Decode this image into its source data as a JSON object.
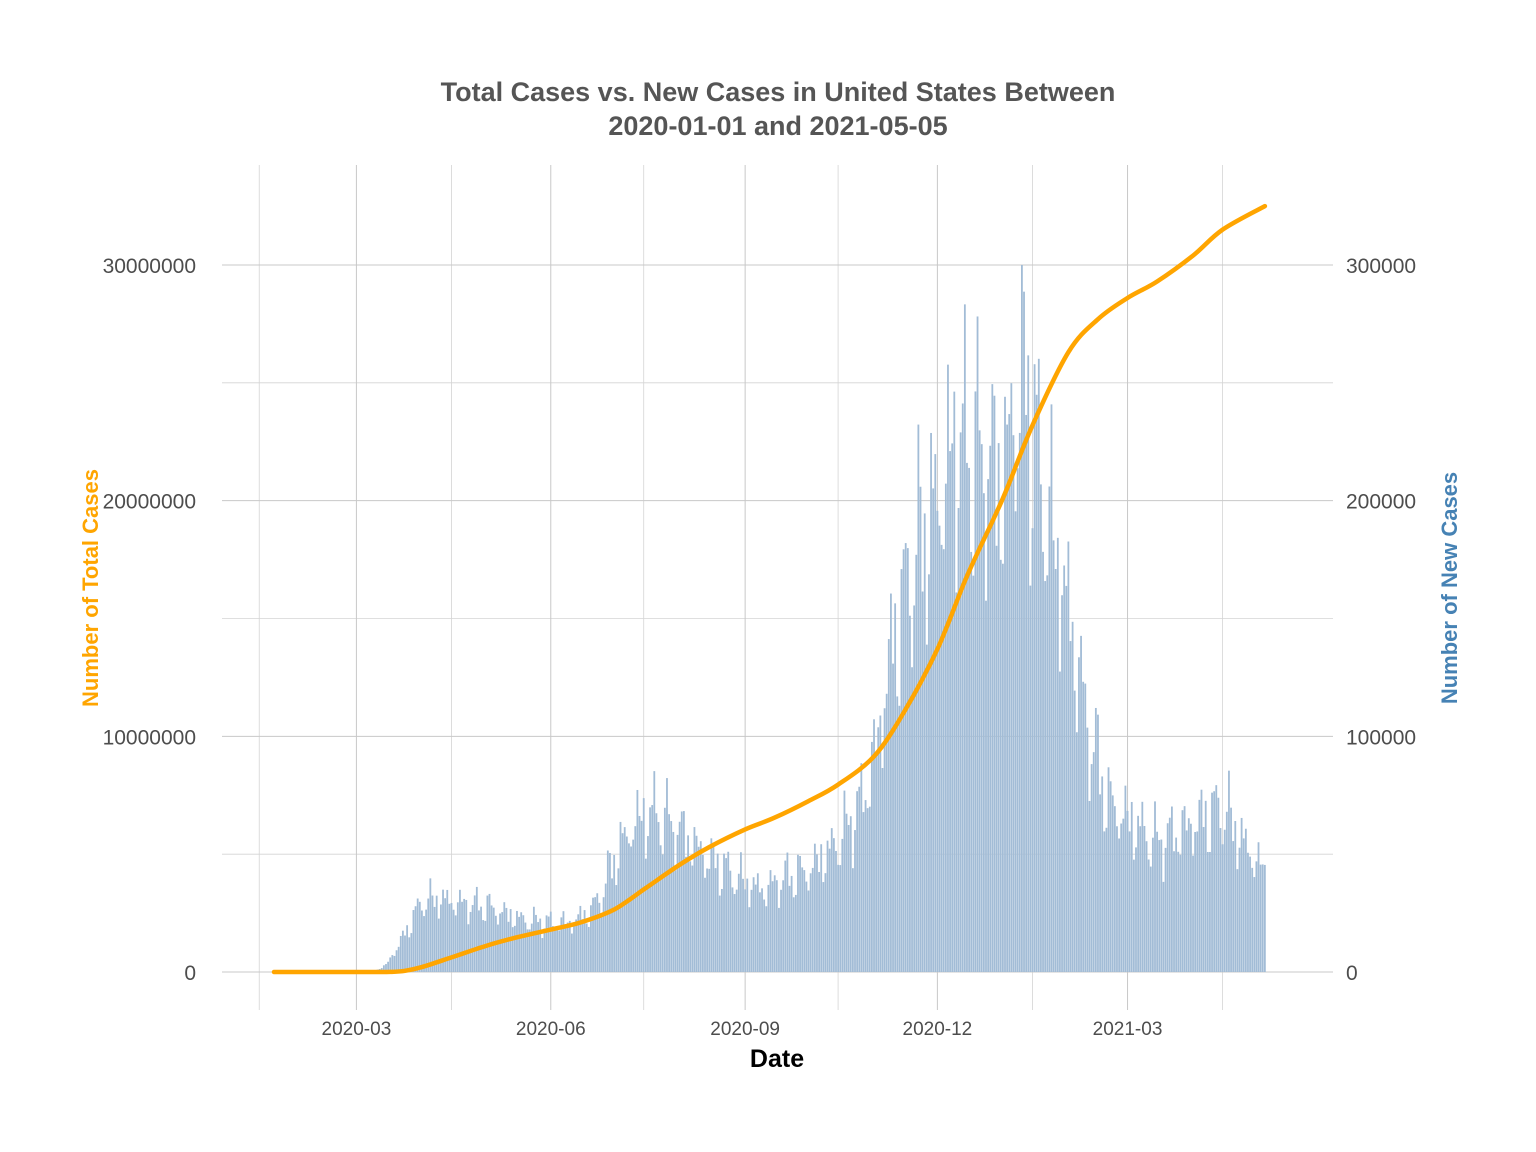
{
  "chart_data": {
    "type": "bar+line",
    "title_line1": "Total Cases vs. New Cases in United States Between",
    "title_line2": "2020-01-01 and 2021-05-05",
    "xlabel": "Date",
    "ylabel_left": "Number of Total Cases",
    "ylabel_right": "Number of New Cases",
    "x_ticks": [
      "2020-03",
      "2020-06",
      "2020-09",
      "2020-12",
      "2021-03"
    ],
    "y_left_ticks": [
      "0",
      "10000000",
      "20000000",
      "30000000"
    ],
    "y_right_ticks": [
      "0",
      "100000",
      "200000",
      "300000"
    ],
    "ylim_left": [
      0,
      34000000
    ],
    "ylim_right": [
      0,
      340000
    ],
    "xlim": [
      "2020-01-13",
      "2021-05-24"
    ],
    "grid": true,
    "colors": {
      "total_line": "#FFA500",
      "new_bars": "#a2bcd6",
      "left_axis_label": "#FFA500",
      "right_axis_label": "#4682B4"
    },
    "series": [
      {
        "name": "Number of Total Cases",
        "kind": "line",
        "axis": "left",
        "x": [
          "2020-01-22",
          "2020-02-15",
          "2020-03-01",
          "2020-03-10",
          "2020-03-17",
          "2020-03-24",
          "2020-04-01",
          "2020-04-15",
          "2020-05-01",
          "2020-05-15",
          "2020-06-01",
          "2020-06-15",
          "2020-07-01",
          "2020-07-15",
          "2020-08-01",
          "2020-08-15",
          "2020-09-01",
          "2020-09-15",
          "2020-10-01",
          "2020-10-15",
          "2020-11-01",
          "2020-11-15",
          "2020-12-01",
          "2020-12-15",
          "2021-01-01",
          "2021-01-15",
          "2021-02-01",
          "2021-02-15",
          "2021-03-01",
          "2021-03-15",
          "2021-04-01",
          "2021-04-15",
          "2021-05-05"
        ],
        "values": [
          0,
          0,
          0,
          50,
          5000,
          50000,
          210000,
          620000,
          1100000,
          1450000,
          1800000,
          2100000,
          2650000,
          3500000,
          4550000,
          5300000,
          6050000,
          6550000,
          7250000,
          7950000,
          9150000,
          11000000,
          13700000,
          16800000,
          20100000,
          23200000,
          26300000,
          27700000,
          28600000,
          29300000,
          30400000,
          31500000,
          32500000
        ]
      },
      {
        "name": "Number of New Cases",
        "kind": "bar",
        "axis": "right",
        "x": [
          "2020-01-22",
          "2020-02-15",
          "2020-03-01",
          "2020-03-10",
          "2020-03-15",
          "2020-03-20",
          "2020-03-25",
          "2020-04-01",
          "2020-04-10",
          "2020-04-20",
          "2020-05-01",
          "2020-05-10",
          "2020-05-20",
          "2020-06-01",
          "2020-06-10",
          "2020-06-20",
          "2020-06-25",
          "2020-07-01",
          "2020-07-10",
          "2020-07-20",
          "2020-08-01",
          "2020-08-15",
          "2020-09-01",
          "2020-09-10",
          "2020-09-20",
          "2020-10-01",
          "2020-10-15",
          "2020-10-25",
          "2020-11-01",
          "2020-11-10",
          "2020-11-20",
          "2020-12-01",
          "2020-12-10",
          "2020-12-20",
          "2021-01-01",
          "2021-01-10",
          "2021-01-20",
          "2021-02-01",
          "2021-02-10",
          "2021-02-20",
          "2021-03-01",
          "2021-03-15",
          "2021-04-01",
          "2021-04-15",
          "2021-04-25",
          "2021-05-05"
        ],
        "values": [
          0,
          0,
          0,
          500,
          3000,
          10000,
          18000,
          30000,
          31000,
          29000,
          28000,
          25000,
          22000,
          21000,
          21000,
          26000,
          33000,
          48000,
          63000,
          68000,
          60000,
          48000,
          38000,
          35000,
          40000,
          43000,
          55000,
          70000,
          90000,
          140000,
          175000,
          200000,
          225000,
          220000,
          210000,
          255000,
          205000,
          155000,
          105000,
          72000,
          65000,
          55000,
          63000,
          70000,
          55000,
          42000
        ]
      }
    ]
  }
}
